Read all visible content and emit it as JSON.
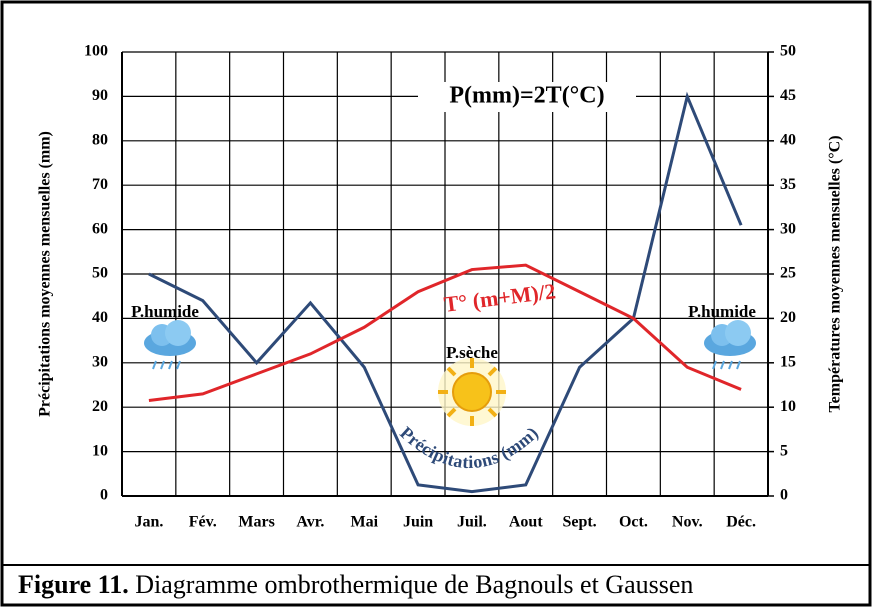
{
  "chart_data": {
    "type": "line",
    "categories": [
      "Jan.",
      "Fév.",
      "Mars",
      "Avr.",
      "Mai",
      "Juin",
      "Juil.",
      "Aout",
      "Sept.",
      "Oct.",
      "Nov.",
      "Déc."
    ],
    "series": [
      {
        "name": "Précipitations (mm)",
        "color": "#2e4a78",
        "values": [
          50,
          44,
          30,
          43.5,
          29,
          2.5,
          1,
          2.5,
          29,
          40,
          90,
          61
        ]
      },
      {
        "name": "T° (m+M)/2",
        "color": "#e0262a",
        "axis": "y2",
        "values": [
          10.75,
          11.5,
          13.75,
          16,
          19,
          23,
          25.5,
          26,
          23,
          20,
          14.5,
          12
        ]
      }
    ],
    "ylabel": "Précipitations moyennes mensuelles (mm)",
    "y2label": "Températures moyennes mensuelles (°C)",
    "ylim": [
      0,
      100
    ],
    "yticks": [
      0,
      10,
      20,
      30,
      40,
      50,
      60,
      70,
      80,
      90,
      100
    ],
    "y2lim": [
      0,
      50
    ],
    "y2ticks": [
      0,
      5,
      10,
      15,
      20,
      25,
      30,
      35,
      40,
      45,
      50
    ],
    "grid": true,
    "annotations": [
      "P(mm)=2T(°C)",
      "P.humide",
      "P.humide",
      "P.sèche"
    ],
    "figure_label": "Figure 11.",
    "caption": "Diagramme ombrothermique de Bagnouls et Gaussen"
  }
}
